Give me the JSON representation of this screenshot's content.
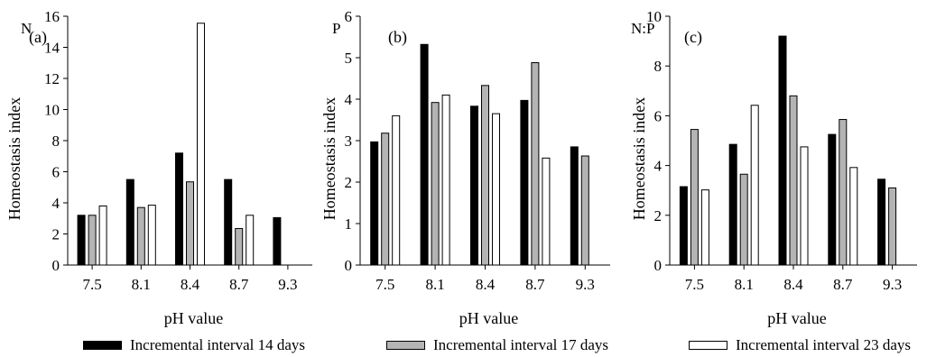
{
  "chart_data": [
    {
      "type": "bar",
      "panel_label": "(a)",
      "element_label": "N",
      "ylabel": "Homeostasis index",
      "xlabel": "pH value",
      "ylim": [
        0,
        16
      ],
      "yticks": [
        0,
        2,
        4,
        6,
        8,
        10,
        12,
        14,
        16
      ],
      "categories": [
        "7.5",
        "8.1",
        "8.4",
        "8.7",
        "9.3"
      ],
      "series": [
        {
          "name": "Incremental interval 14 days",
          "values": [
            3.2,
            5.5,
            7.2,
            5.5,
            3.05
          ]
        },
        {
          "name": "Incremental interval 17 days",
          "values": [
            3.2,
            3.7,
            5.35,
            2.35,
            null
          ]
        },
        {
          "name": "Incremental interval 23 days",
          "values": [
            3.8,
            3.85,
            15.55,
            3.2,
            null
          ]
        }
      ]
    },
    {
      "type": "bar",
      "panel_label": "(b)",
      "element_label": "P",
      "ylabel": "Homeostasis index",
      "xlabel": "pH value",
      "ylim": [
        0,
        6
      ],
      "yticks": [
        0,
        1,
        2,
        3,
        4,
        5,
        6
      ],
      "categories": [
        "7.5",
        "8.1",
        "8.4",
        "8.7",
        "9.3"
      ],
      "series": [
        {
          "name": "Incremental interval 14 days",
          "values": [
            2.97,
            5.32,
            3.83,
            3.97,
            2.85
          ]
        },
        {
          "name": "Incremental interval 17 days",
          "values": [
            3.18,
            3.92,
            4.33,
            4.88,
            2.63
          ]
        },
        {
          "name": "Incremental interval 23 days",
          "values": [
            3.6,
            4.1,
            3.65,
            2.58,
            null
          ]
        }
      ]
    },
    {
      "type": "bar",
      "panel_label": "(c)",
      "element_label": "N:P",
      "ylabel": "Homeostasis index",
      "xlabel": "pH value",
      "ylim": [
        0,
        10
      ],
      "yticks": [
        0,
        2,
        4,
        6,
        8,
        10
      ],
      "categories": [
        "7.5",
        "8.1",
        "8.4",
        "8.7",
        "9.3"
      ],
      "series": [
        {
          "name": "Incremental interval 14 days",
          "values": [
            3.15,
            4.85,
            9.2,
            5.25,
            3.45
          ]
        },
        {
          "name": "Incremental interval 17 days",
          "values": [
            5.45,
            3.65,
            6.8,
            5.85,
            3.1
          ]
        },
        {
          "name": "Incremental interval 23 days",
          "values": [
            3.02,
            6.42,
            4.75,
            3.92,
            null
          ]
        }
      ]
    }
  ],
  "legend": [
    {
      "label": "Incremental interval 14 days",
      "color": "#000000"
    },
    {
      "label": "Incremental interval 17 days",
      "color": "#b4b4b4"
    },
    {
      "label": "Incremental interval 23 days",
      "color": "#ffffff"
    }
  ],
  "colors": {
    "series_14": "#000000",
    "series_17": "#b4b4b4",
    "series_23": "#ffffff",
    "axis": "#000000"
  }
}
